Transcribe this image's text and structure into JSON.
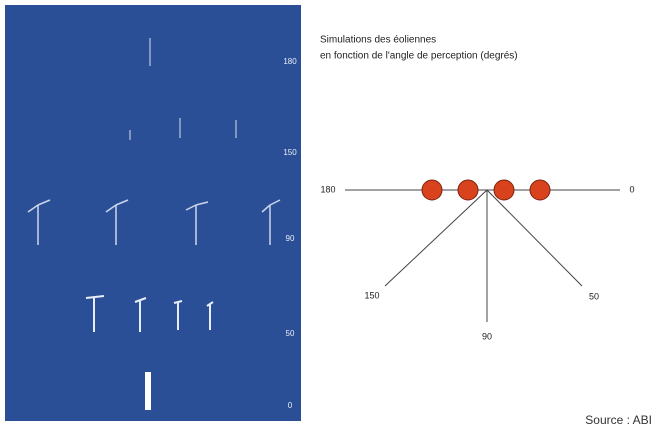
{
  "panel": {
    "angle_labels": [
      "180",
      "150",
      "90",
      "50",
      "0"
    ]
  },
  "title": [
    "Simulations des éoliennes",
    "en fonction de l'angle de perception (degrés)"
  ],
  "diagram": {
    "left": "180",
    "right": "0",
    "lower_left": "150",
    "bottom": "90",
    "lower_right": "50"
  },
  "source": "Source : ABI"
}
